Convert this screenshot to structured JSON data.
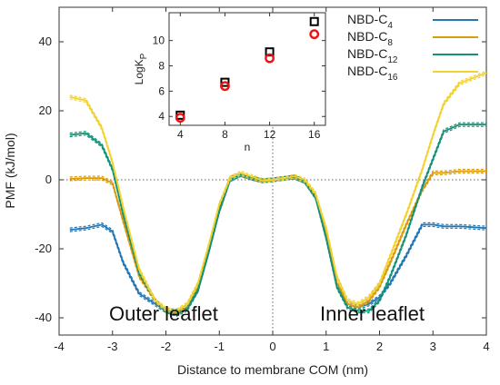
{
  "chart_data": [
    {
      "type": "line",
      "xlabel": "Distance to membrane COM (nm)",
      "ylabel": "PMF (kJ/mol)",
      "xlim": [
        -4,
        4
      ],
      "ylim": [
        -45,
        50
      ],
      "xticks": [
        -4,
        -3,
        -2,
        -1,
        0,
        1,
        2,
        3,
        4
      ],
      "yticks": [
        -40,
        -20,
        0,
        20,
        40
      ],
      "zero_lines": true,
      "annotations": [
        "Outer leaflet",
        "Inner leaflet"
      ],
      "legend": {
        "placement": "top-right"
      },
      "series": [
        {
          "name": "NBD-C4",
          "label_main": "NBD-C",
          "label_sub": "4",
          "color": "#2277b4",
          "x": [
            -3.8,
            -3.5,
            -3.2,
            -3.0,
            -2.8,
            -2.5,
            -2.2,
            -2.0,
            -1.8,
            -1.6,
            -1.4,
            -1.2,
            -1.0,
            -0.8,
            -0.6,
            -0.4,
            -0.2,
            0.0,
            0.2,
            0.4,
            0.6,
            0.8,
            1.0,
            1.2,
            1.4,
            1.6,
            1.8,
            2.0,
            2.2,
            2.5,
            2.8,
            3.0,
            3.2,
            3.5,
            4.0
          ],
          "y": [
            -14.5,
            -14,
            -13,
            -15,
            -24,
            -33,
            -36,
            -38,
            -38,
            -37,
            -32,
            -21,
            -9,
            0,
            1.5,
            0.5,
            -0.3,
            0,
            0.4,
            0.8,
            -0.5,
            -5,
            -16,
            -30,
            -36,
            -37,
            -36,
            -34,
            -30,
            -22,
            -13,
            -13,
            -13.5,
            -13.5,
            -14
          ]
        },
        {
          "name": "NBD-C8",
          "label_main": "NBD-C",
          "label_sub": "8",
          "color": "#d99a0e",
          "x": [
            -3.8,
            -3.5,
            -3.2,
            -3.0,
            -2.8,
            -2.5,
            -2.2,
            -2.0,
            -1.8,
            -1.6,
            -1.4,
            -1.2,
            -1.0,
            -0.8,
            -0.6,
            -0.4,
            -0.2,
            0.0,
            0.2,
            0.4,
            0.6,
            0.8,
            1.0,
            1.2,
            1.4,
            1.6,
            1.8,
            2.0,
            2.2,
            2.5,
            2.8,
            3.0,
            3.2,
            3.5,
            4.0
          ],
          "y": [
            0.3,
            0.5,
            0.5,
            -1,
            -12,
            -28,
            -35,
            -38,
            -38.5,
            -37,
            -31,
            -20,
            -8,
            0.5,
            1.5,
            0.5,
            -0.3,
            0,
            0.4,
            0.8,
            -0.5,
            -5,
            -16,
            -30,
            -36,
            -37,
            -35,
            -31,
            -24,
            -13,
            -3,
            2,
            2,
            2.5,
            2.5
          ]
        },
        {
          "name": "NBD-C12",
          "label_main": "NBD-C",
          "label_sub": "12",
          "color": "#159178",
          "x": [
            -3.8,
            -3.5,
            -3.2,
            -3.0,
            -2.8,
            -2.5,
            -2.2,
            -2.0,
            -1.8,
            -1.6,
            -1.4,
            -1.2,
            -1.0,
            -0.8,
            -0.6,
            -0.4,
            -0.2,
            0.0,
            0.2,
            0.4,
            0.6,
            0.8,
            1.0,
            1.2,
            1.4,
            1.6,
            1.8,
            2.0,
            2.2,
            2.5,
            2.8,
            3.0,
            3.2,
            3.5,
            4.0
          ],
          "y": [
            13,
            13.5,
            10,
            3,
            -10,
            -27,
            -35,
            -38,
            -39,
            -37.5,
            -32,
            -21,
            -9,
            0,
            1.5,
            0.5,
            -0.3,
            0,
            0.4,
            0.8,
            -0.5,
            -5,
            -17,
            -31,
            -37,
            -38,
            -38,
            -35,
            -28,
            -16,
            -2,
            6,
            14,
            16,
            16
          ]
        },
        {
          "name": "NBD-C16",
          "label_main": "NBD-C",
          "label_sub": "16",
          "color": "#f2d230",
          "x": [
            -3.8,
            -3.5,
            -3.2,
            -3.0,
            -2.8,
            -2.5,
            -2.2,
            -2.0,
            -1.8,
            -1.6,
            -1.4,
            -1.2,
            -1.0,
            -0.8,
            -0.6,
            -0.4,
            -0.2,
            0.0,
            0.2,
            0.4,
            0.6,
            0.8,
            1.0,
            1.2,
            1.4,
            1.6,
            1.8,
            2.0,
            2.2,
            2.5,
            2.8,
            3.0,
            3.2,
            3.5,
            4.0
          ],
          "y": [
            24,
            23,
            15,
            5,
            -8,
            -26,
            -35,
            -37.5,
            -38,
            -36,
            -30,
            -19,
            -7,
            0.5,
            2,
            1,
            -0.2,
            0,
            0.4,
            1,
            0,
            -4,
            -14,
            -28,
            -35,
            -36,
            -34,
            -30,
            -22,
            -10,
            3,
            13,
            22,
            28,
            31
          ]
        }
      ]
    },
    {
      "type": "scatter",
      "xlabel": "n",
      "ylabel_main": "LogK",
      "ylabel_sub": "P",
      "xlim": [
        3,
        17
      ],
      "ylim": [
        3.3,
        12.2
      ],
      "xticks": [
        4,
        8,
        12,
        16
      ],
      "yticks": [
        4,
        6,
        8,
        10
      ],
      "series": [
        {
          "marker": "square",
          "color": "#000000",
          "x": [
            4,
            8,
            12,
            16
          ],
          "y": [
            4.1,
            6.7,
            9.1,
            11.5
          ]
        },
        {
          "marker": "circle",
          "color": "#ee1111",
          "x": [
            4,
            8,
            12,
            16
          ],
          "y": [
            3.9,
            6.4,
            8.6,
            10.5
          ]
        }
      ]
    }
  ]
}
